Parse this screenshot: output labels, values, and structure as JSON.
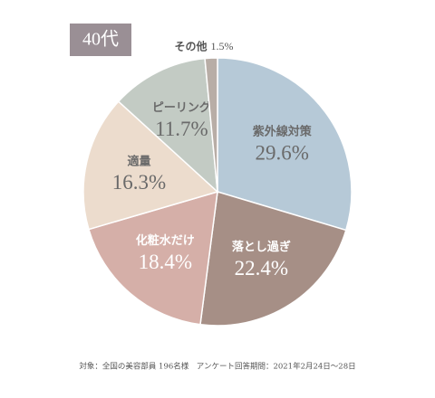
{
  "chart_data": {
    "type": "pie",
    "title": "40代",
    "categories": [
      "紫外線対策",
      "落とし過ぎ",
      "化粧水だけ",
      "適量",
      "ピーリング",
      "その他"
    ],
    "values": [
      29.6,
      22.4,
      18.4,
      16.3,
      11.7,
      1.5
    ],
    "value_labels": [
      "29.6%",
      "22.4%",
      "18.4%",
      "16.3%",
      "11.7%",
      "1.5%"
    ],
    "colors": [
      "#b6c9d7",
      "#a68f86",
      "#d5afa8",
      "#ecdccd",
      "#c3cbc4",
      "#b8ada6"
    ],
    "footnote": "対象：全国の美容部員 196名様　アンケート回答期間：2021年2月24日～28日"
  }
}
